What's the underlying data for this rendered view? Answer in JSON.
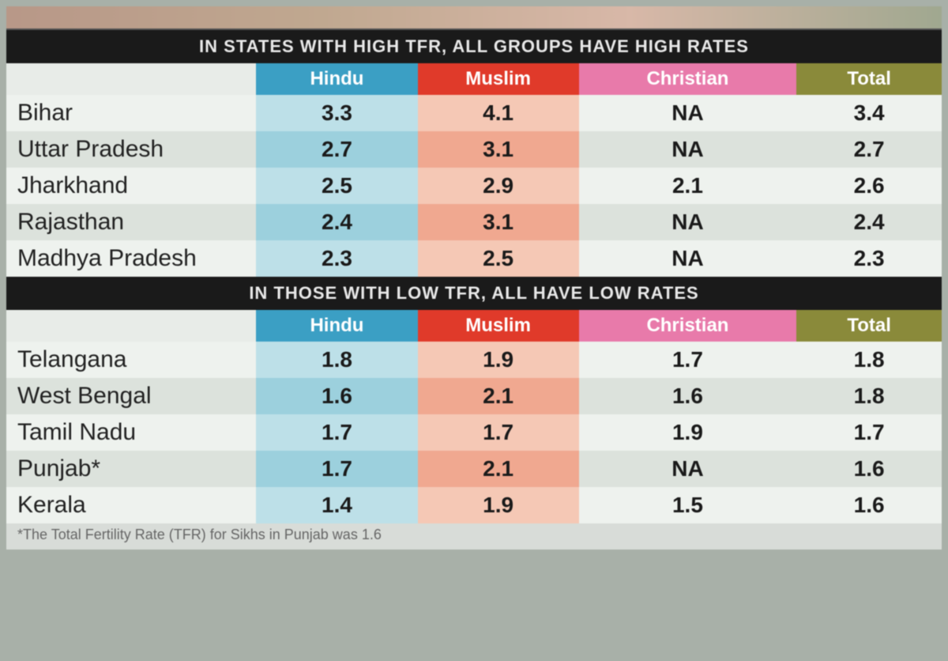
{
  "colors": {
    "hindu_header": "#3b9fc4",
    "muslim_header": "#e03a2a",
    "christian_header": "#e87aaa",
    "total_header": "#8a8a3a",
    "hindu_cell_light": "#bde0e8",
    "hindu_cell_dark": "#9cd0dd",
    "muslim_cell_light": "#f5c8b5",
    "muslim_cell_dark": "#f0a890",
    "plain_light": "#eef2ee",
    "plain_dark": "#dce2dc",
    "title_bg": "#1a1a1a",
    "title_fg": "#e8e8e8",
    "body_bg": "#e8ece8",
    "text_color": "#1a1a1a"
  },
  "fontsize": {
    "title": 22,
    "header": 24,
    "cell": 28,
    "state": 30,
    "footnote": 18
  },
  "headers": {
    "hindu": "Hindu",
    "muslim": "Muslim",
    "christian": "Christian",
    "total": "Total"
  },
  "section1": {
    "title": "IN STATES WITH HIGH TFR, ALL GROUPS HAVE HIGH RATES",
    "rows": [
      {
        "state": "Bihar",
        "hindu": "3.3",
        "muslim": "4.1",
        "christian": "NA",
        "total": "3.4"
      },
      {
        "state": "Uttar Pradesh",
        "hindu": "2.7",
        "muslim": "3.1",
        "christian": "NA",
        "total": "2.7"
      },
      {
        "state": "Jharkhand",
        "hindu": "2.5",
        "muslim": "2.9",
        "christian": "2.1",
        "total": "2.6"
      },
      {
        "state": "Rajasthan",
        "hindu": "2.4",
        "muslim": "3.1",
        "christian": "NA",
        "total": "2.4"
      },
      {
        "state": "Madhya Pradesh",
        "hindu": "2.3",
        "muslim": "2.5",
        "christian": "NA",
        "total": "2.3"
      }
    ]
  },
  "section2": {
    "title": "IN THOSE WITH LOW TFR, ALL HAVE LOW RATES",
    "rows": [
      {
        "state": "Telangana",
        "hindu": "1.8",
        "muslim": "1.9",
        "christian": "1.7",
        "total": "1.8"
      },
      {
        "state": "West Bengal",
        "hindu": "1.6",
        "muslim": "2.1",
        "christian": "1.6",
        "total": "1.8"
      },
      {
        "state": "Tamil Nadu",
        "hindu": "1.7",
        "muslim": "1.7",
        "christian": "1.9",
        "total": "1.7"
      },
      {
        "state": "Punjab*",
        "hindu": "1.7",
        "muslim": "2.1",
        "christian": "NA",
        "total": "1.6"
      },
      {
        "state": "Kerala",
        "hindu": "1.4",
        "muslim": "1.9",
        "christian": "1.5",
        "total": "1.6"
      }
    ]
  },
  "footnote": "*The Total Fertility Rate (TFR) for Sikhs in Punjab was 1.6"
}
